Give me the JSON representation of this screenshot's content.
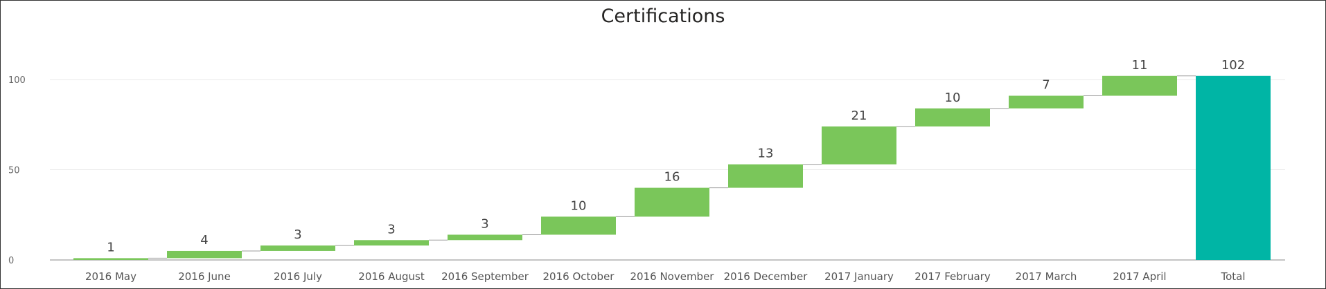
{
  "chart_data": {
    "type": "waterfall",
    "title": "Certifications",
    "categories": [
      "2016 May",
      "2016 June",
      "2016 July",
      "2016 August",
      "2016 September",
      "2016 October",
      "2016 November",
      "2016 December",
      "2017 January",
      "2017 February",
      "2017 March",
      "2017 April"
    ],
    "values": [
      1,
      4,
      3,
      3,
      3,
      10,
      16,
      13,
      21,
      10,
      7,
      11
    ],
    "total_label": "Total",
    "total": 102,
    "ylim": [
      0,
      120
    ],
    "yticks": [
      0,
      50,
      100
    ],
    "grid": true,
    "legend": "none",
    "colors": {
      "increase": "#7ac65a",
      "total": "#00b5a5",
      "connector": "#9e9e9e",
      "grid": "#e8e8e8",
      "axis": "#888888"
    }
  }
}
